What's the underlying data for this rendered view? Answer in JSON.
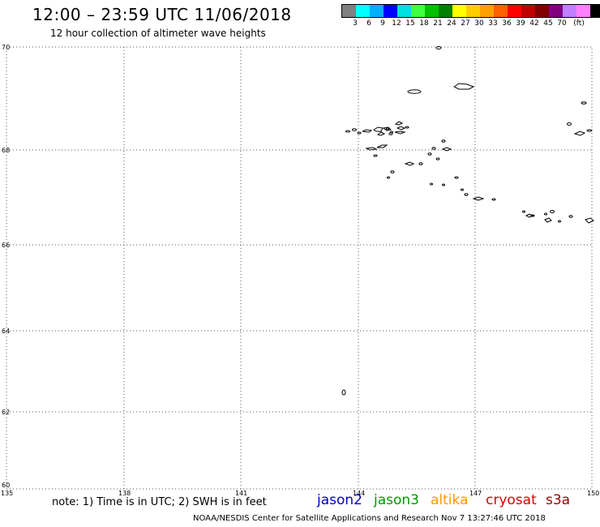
{
  "header": {
    "title": "12:00 – 23:59 UTC 11/06/2018",
    "subtitle": "12 hour collection of altimeter wave heights"
  },
  "legend": {
    "swatches": [
      "#808080",
      "#00ffff",
      "#00b0ff",
      "#0000ff",
      "#00e0e0",
      "#40ff40",
      "#00c000",
      "#008000",
      "#ffff00",
      "#ffcc00",
      "#ffa000",
      "#ff6000",
      "#ff0000",
      "#c00000",
      "#800000",
      "#800080",
      "#c080ff",
      "#ff80ff",
      "#000000"
    ],
    "labels": [
      "3",
      "6",
      "9",
      "12",
      "15",
      "18",
      "21",
      "24",
      "27",
      "30",
      "33",
      "36",
      "39",
      "42",
      "45",
      "70",
      "(ft)"
    ]
  },
  "map": {
    "lat_labels": [
      "70",
      "68",
      "66",
      "64",
      "62",
      "60"
    ],
    "lon_labels": [
      "135",
      "138",
      "141",
      "144",
      "147",
      "150"
    ]
  },
  "note": "note: 1) Time is in UTC; 2) SWH is in feet",
  "satellites": [
    {
      "name": "jason2",
      "color": "#0000cc"
    },
    {
      "name": "jason3",
      "color": "#009900"
    },
    {
      "name": "altika",
      "color": "#ff9900"
    },
    {
      "name": "cryosat",
      "color": "#dd0000"
    },
    {
      "name": "s3a",
      "color": "#990000"
    }
  ],
  "footer": "NOAA/NESDIS Center for Satellite Applications and Research    Nov  7 13:27:46 UTC 2018"
}
